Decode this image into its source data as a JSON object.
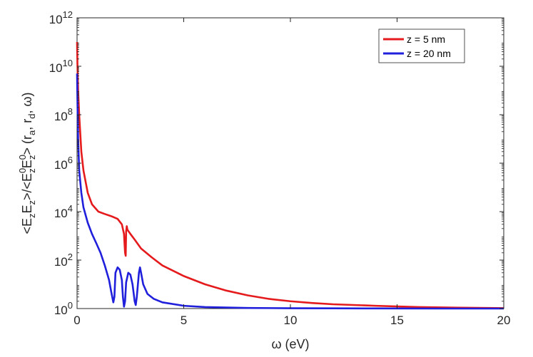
{
  "chart_data": {
    "type": "line",
    "title": "",
    "xlabel": "ω (eV)",
    "ylabel_parts": [
      "<E",
      "z",
      "E",
      "z",
      ">/<E",
      "0",
      "z",
      "E",
      "0",
      "z",
      "> (r",
      "a",
      ", r",
      "d",
      ", ω)"
    ],
    "xlim": [
      0,
      20
    ],
    "ylim": [
      1,
      1000000000000.0
    ],
    "y_scale": "log",
    "grid": false,
    "legend_position": "top-right",
    "x_ticks": [
      "0",
      "5",
      "10",
      "15",
      "20"
    ],
    "y_tick_exponents": [
      "0",
      "2",
      "4",
      "6",
      "8",
      "10",
      "12"
    ],
    "y_tick_base": "10",
    "series": [
      {
        "name": "z = 5 nm",
        "color": "#e41a1c",
        "x": [
          0.0,
          0.02,
          0.05,
          0.1,
          0.2,
          0.3,
          0.5,
          0.7,
          1.0,
          1.3,
          1.6,
          1.9,
          2.1,
          2.2,
          2.25,
          2.28,
          2.3,
          2.33,
          2.36,
          2.4,
          2.5,
          2.7,
          3.0,
          3.5,
          4.0,
          5.0,
          6.0,
          7.0,
          8.0,
          9.0,
          10.0,
          11.0,
          12.0,
          14.0,
          16.0,
          18.0,
          20.0
        ],
        "y": [
          100000000000.0,
          10000000000.0,
          1000000000.0,
          100000000.0,
          3000000.0,
          500000.0,
          60000.0,
          20000.0,
          10000.0,
          8000,
          6500,
          5000,
          3000,
          1200,
          200,
          150,
          1500,
          2500,
          1800,
          1600,
          1200,
          700,
          300,
          130,
          60,
          22,
          10,
          5.5,
          3.5,
          2.5,
          2.0,
          1.7,
          1.5,
          1.3,
          1.15,
          1.08,
          1.04
        ]
      },
      {
        "name": "z = 20 nm",
        "color": "#1f1fdc",
        "x": [
          0.0,
          0.02,
          0.05,
          0.1,
          0.2,
          0.3,
          0.5,
          0.7,
          0.9,
          1.1,
          1.3,
          1.5,
          1.6,
          1.7,
          1.75,
          1.8,
          1.9,
          2.0,
          2.1,
          2.15,
          2.2,
          2.25,
          2.3,
          2.4,
          2.5,
          2.6,
          2.7,
          2.75,
          2.8,
          2.9,
          2.95,
          3.0,
          3.1,
          3.3,
          3.6,
          4.0,
          5.0,
          6.0,
          8.0,
          10.0,
          12.0,
          14.0,
          17.0,
          20.0
        ],
        "y": [
          5000000000.0,
          300000000.0,
          10000000.0,
          500000.0,
          60000.0,
          15000.0,
          3500,
          1200,
          500,
          200,
          60,
          15,
          5,
          1.8,
          3,
          30,
          50,
          40,
          15,
          3,
          1.2,
          2,
          12,
          30,
          25,
          10,
          2,
          1.4,
          3,
          30,
          50,
          30,
          10,
          4,
          2.5,
          1.8,
          1.3,
          1.15,
          1.06,
          1.03,
          1.02,
          1.01,
          1.0,
          1.0
        ]
      }
    ]
  }
}
